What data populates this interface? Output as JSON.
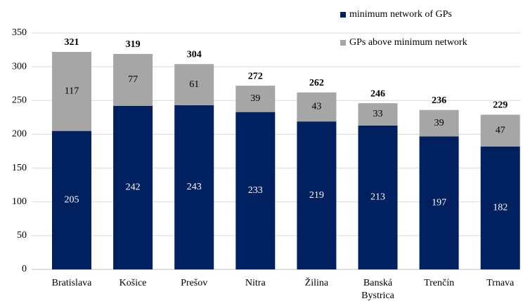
{
  "chart_data": {
    "type": "stacked-bar",
    "categories": [
      "Bratislava",
      "Košice",
      "Prešov",
      "Nitra",
      "Žilina",
      "Banská Bystrica",
      "Trenčín",
      "Trnava"
    ],
    "series": [
      {
        "name": "minimum network of GPs",
        "color": "#002060",
        "values": [
          205,
          242,
          243,
          233,
          219,
          213,
          197,
          182
        ]
      },
      {
        "name": "GPs above minimum network",
        "color": "#a6a6a6",
        "values": [
          117,
          77,
          61,
          39,
          43,
          33,
          39,
          47
        ]
      }
    ],
    "totals": [
      321,
      319,
      304,
      272,
      262,
      246,
      236,
      229
    ],
    "ylim": [
      0,
      350
    ],
    "yticks": [
      0,
      50,
      100,
      150,
      200,
      250,
      300,
      350
    ],
    "grid": true,
    "legend": "top-right"
  }
}
